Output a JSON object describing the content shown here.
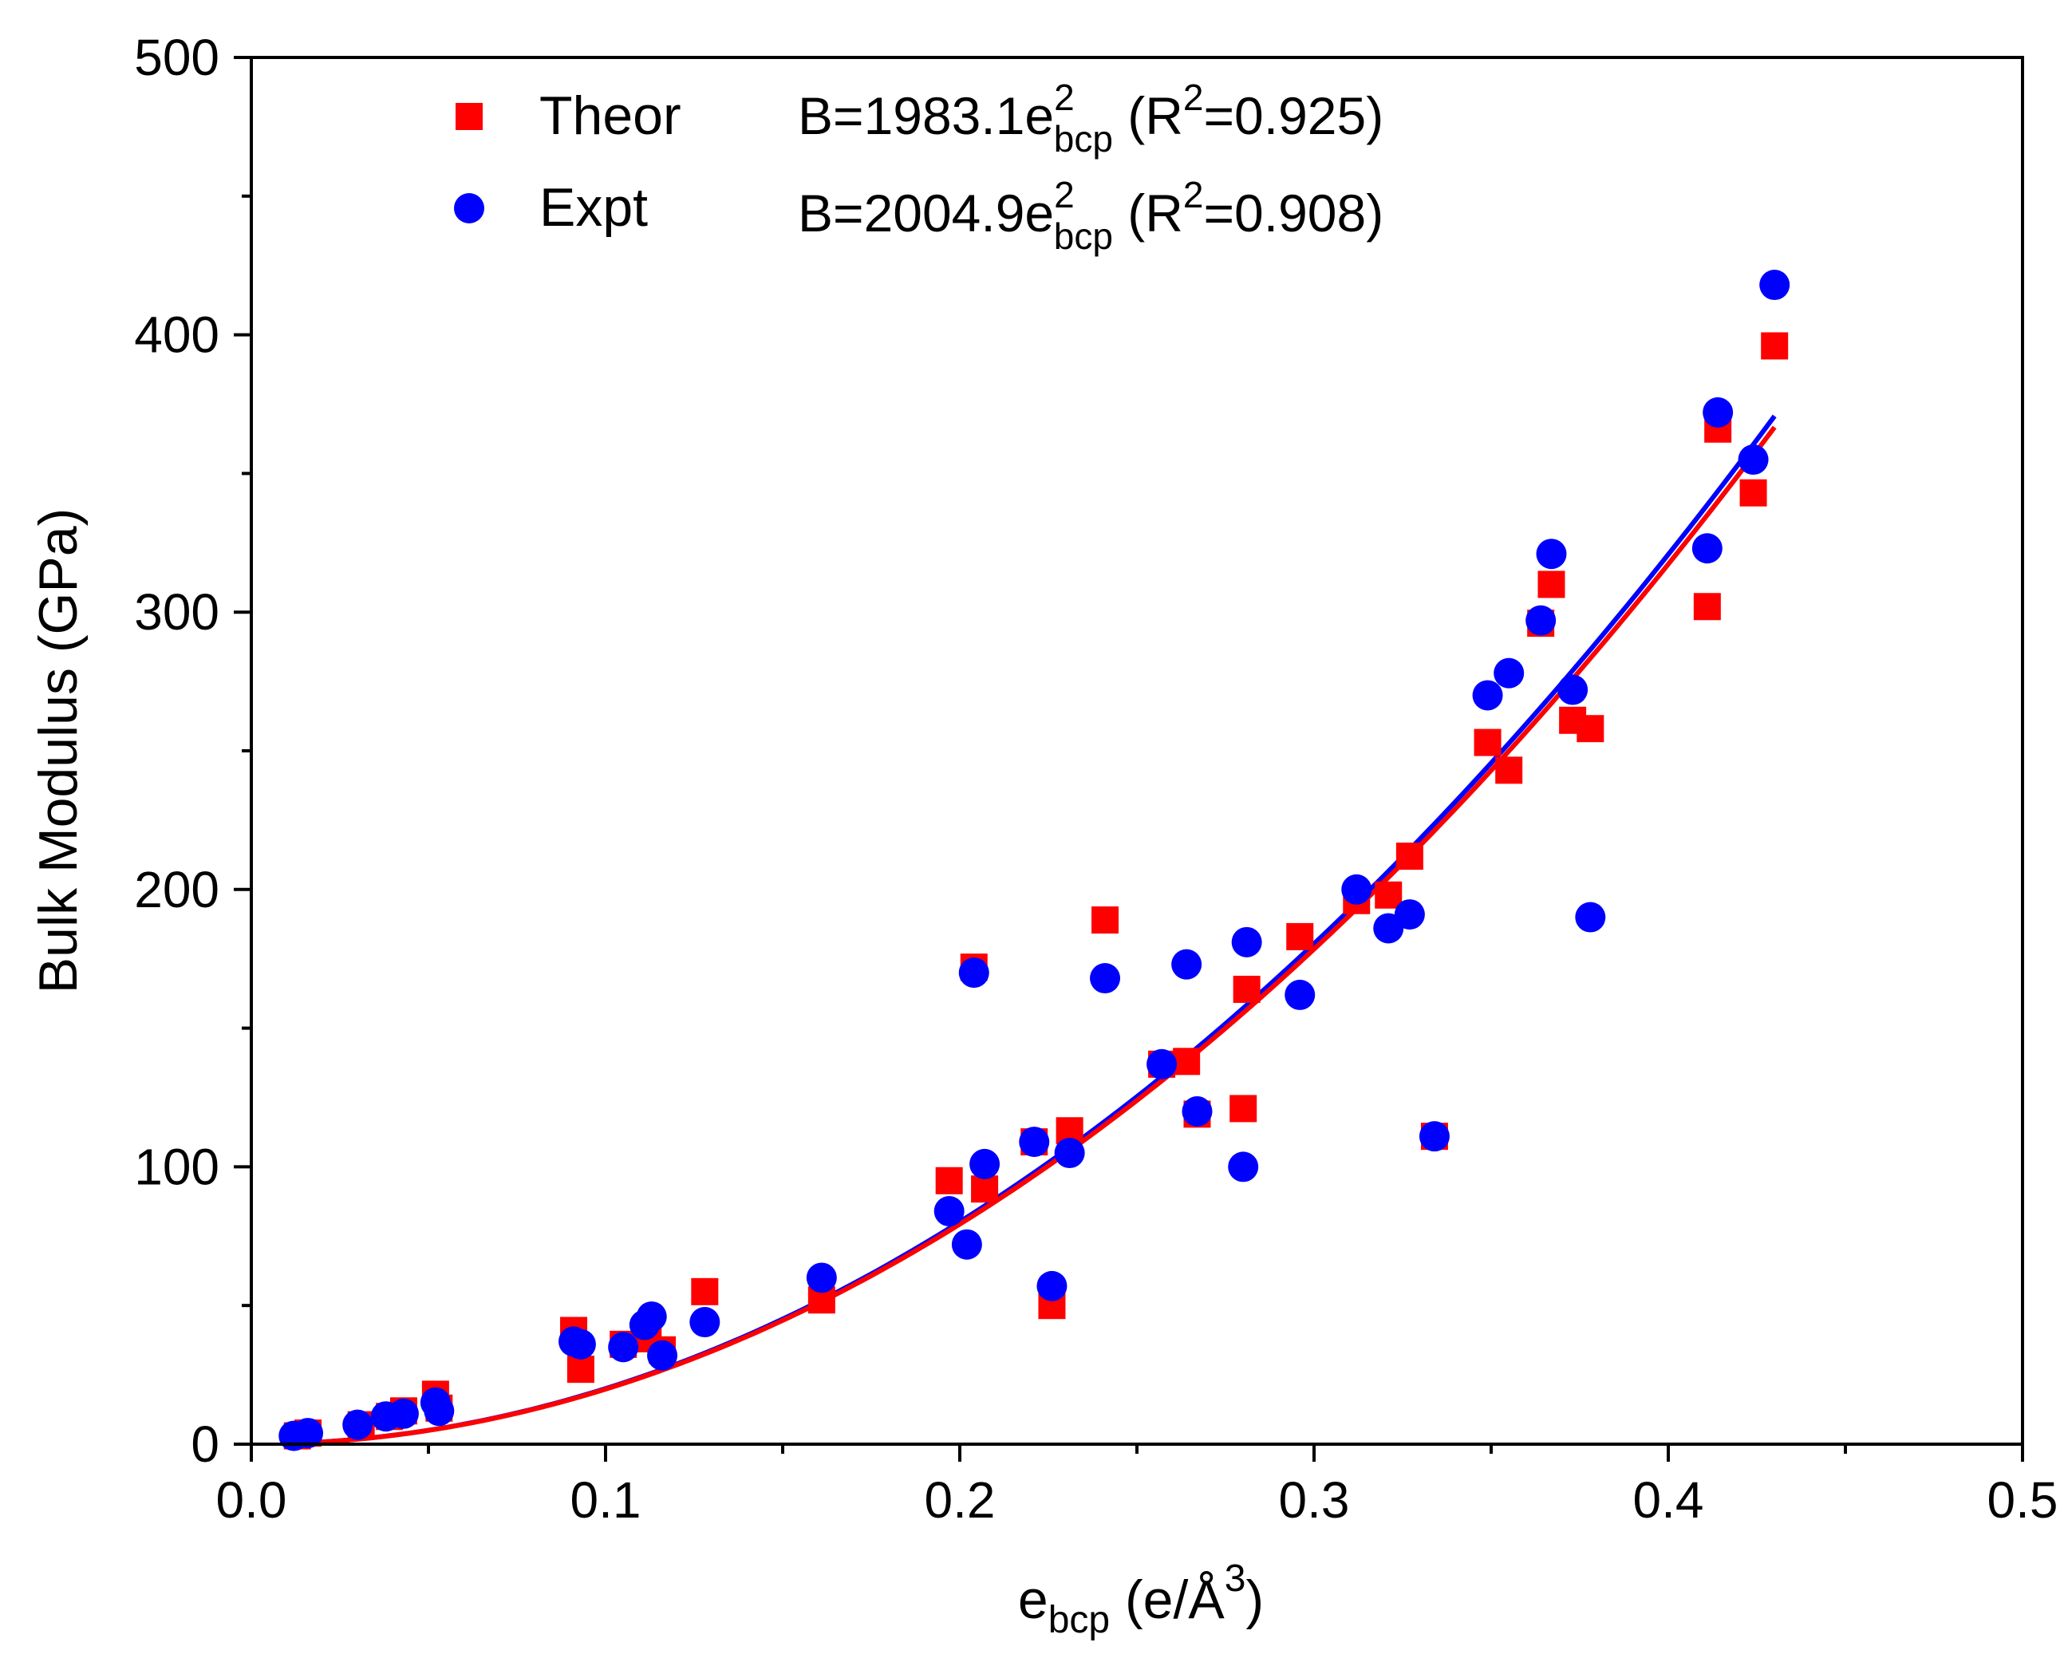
{
  "chart_data": {
    "type": "scatter",
    "title": "",
    "xlabel": {
      "main": "e",
      "sub": "bcp",
      "rest": " (e/Å",
      "sup": "3",
      "close": ")"
    },
    "ylabel": "Bulk Modulus (GPa)",
    "xlim": [
      0.0,
      0.5
    ],
    "ylim": [
      0,
      500
    ],
    "x_ticks": [
      0.0,
      0.1,
      0.2,
      0.3,
      0.4,
      0.5
    ],
    "x_tick_labels": [
      "0.0",
      "0.1",
      "0.2",
      "0.3",
      "0.4",
      "0.5"
    ],
    "y_ticks": [
      0,
      100,
      200,
      300,
      400,
      500
    ],
    "y_tick_labels": [
      "0",
      "100",
      "200",
      "300",
      "400",
      "500"
    ],
    "x_minor_ticks": [
      0.05,
      0.15,
      0.25,
      0.35,
      0.45
    ],
    "y_minor_ticks": [
      50,
      150,
      250,
      350,
      450
    ],
    "grid": false,
    "legend_position": "top-left",
    "series": [
      {
        "name": "Theor",
        "marker": "square",
        "color": "#ff0000",
        "fit": {
          "coef": 1983.1,
          "r2_label": "0.925",
          "label_prefix": "B=1983.1e",
          "label_exp": "2",
          "label_sub": "bcp",
          "label_r_open": " (R",
          "label_r_exp": "2",
          "label_r_close": "=0.925)"
        },
        "points": [
          [
            0.013,
            3
          ],
          [
            0.016,
            4
          ],
          [
            0.031,
            7
          ],
          [
            0.039,
            10
          ],
          [
            0.043,
            12
          ],
          [
            0.052,
            18
          ],
          [
            0.053,
            13
          ],
          [
            0.091,
            41
          ],
          [
            0.093,
            27
          ],
          [
            0.105,
            36
          ],
          [
            0.112,
            38
          ],
          [
            0.116,
            34
          ],
          [
            0.128,
            55
          ],
          [
            0.161,
            52
          ],
          [
            0.197,
            95
          ],
          [
            0.204,
            172
          ],
          [
            0.207,
            92
          ],
          [
            0.221,
            109
          ],
          [
            0.226,
            50
          ],
          [
            0.231,
            113
          ],
          [
            0.241,
            189
          ],
          [
            0.257,
            137
          ],
          [
            0.264,
            138
          ],
          [
            0.267,
            119
          ],
          [
            0.28,
            121
          ],
          [
            0.281,
            164
          ],
          [
            0.296,
            183
          ],
          [
            0.312,
            196
          ],
          [
            0.321,
            198
          ],
          [
            0.327,
            212
          ],
          [
            0.334,
            111
          ],
          [
            0.349,
            253
          ],
          [
            0.355,
            243
          ],
          [
            0.364,
            296
          ],
          [
            0.367,
            310
          ],
          [
            0.373,
            261
          ],
          [
            0.378,
            258
          ],
          [
            0.411,
            302
          ],
          [
            0.414,
            366
          ],
          [
            0.424,
            343
          ],
          [
            0.43,
            396
          ]
        ]
      },
      {
        "name": "Expt",
        "marker": "circle",
        "color": "#0000ff",
        "fit": {
          "coef": 2004.9,
          "r2_label": "0.908",
          "label_prefix": "B=2004.9e",
          "label_exp": "2",
          "label_sub": "bcp",
          "label_r_open": " (R",
          "label_r_exp": "2",
          "label_r_close": "=0.908)"
        },
        "points": [
          [
            0.012,
            3
          ],
          [
            0.016,
            4
          ],
          [
            0.03,
            7
          ],
          [
            0.038,
            10
          ],
          [
            0.043,
            11
          ],
          [
            0.052,
            15
          ],
          [
            0.053,
            12
          ],
          [
            0.091,
            37
          ],
          [
            0.093,
            36
          ],
          [
            0.105,
            35
          ],
          [
            0.111,
            43
          ],
          [
            0.113,
            46
          ],
          [
            0.116,
            32
          ],
          [
            0.128,
            44
          ],
          [
            0.161,
            60
          ],
          [
            0.197,
            84
          ],
          [
            0.202,
            72
          ],
          [
            0.204,
            170
          ],
          [
            0.207,
            101
          ],
          [
            0.221,
            109
          ],
          [
            0.226,
            57
          ],
          [
            0.231,
            105
          ],
          [
            0.241,
            168
          ],
          [
            0.257,
            137
          ],
          [
            0.264,
            173
          ],
          [
            0.267,
            120
          ],
          [
            0.28,
            100
          ],
          [
            0.281,
            181
          ],
          [
            0.296,
            162
          ],
          [
            0.312,
            200
          ],
          [
            0.321,
            186
          ],
          [
            0.327,
            191
          ],
          [
            0.334,
            111
          ],
          [
            0.349,
            270
          ],
          [
            0.355,
            278
          ],
          [
            0.364,
            297
          ],
          [
            0.367,
            321
          ],
          [
            0.373,
            272
          ],
          [
            0.378,
            190
          ],
          [
            0.411,
            323
          ],
          [
            0.414,
            372
          ],
          [
            0.424,
            355
          ],
          [
            0.43,
            418
          ]
        ]
      }
    ],
    "fit_x_range": [
      0.013,
      0.43
    ]
  }
}
